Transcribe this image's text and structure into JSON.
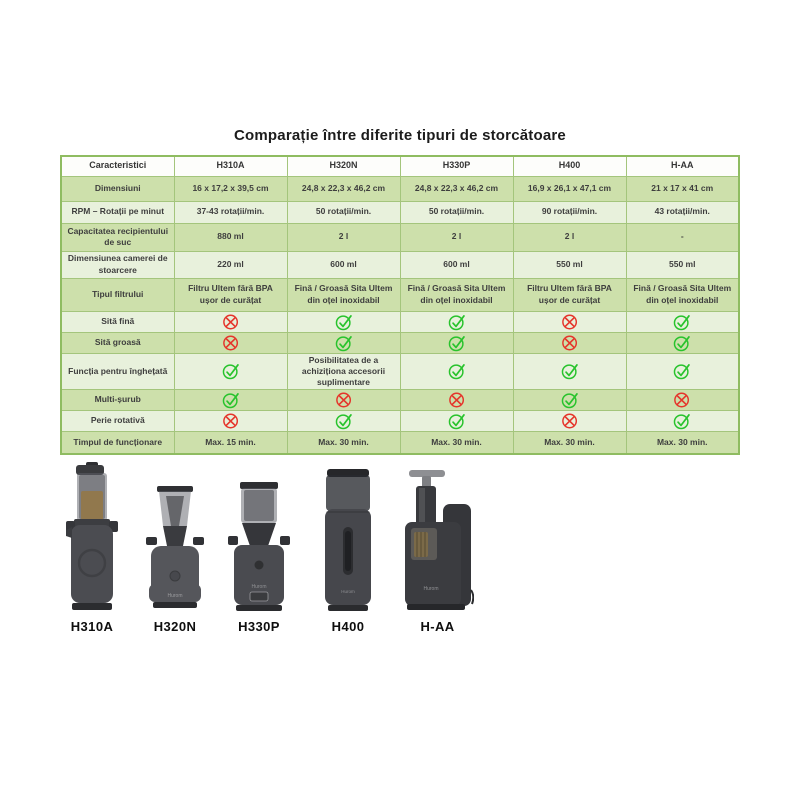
{
  "title": "Comparație între diferite tipuri de storcătoare",
  "table": {
    "header": [
      "Caracteristici",
      "H310A",
      "H320N",
      "H330P",
      "H400",
      "H-AA"
    ],
    "rows": [
      {
        "label": "Dimensiuni",
        "cells": [
          "16 x 17,2 x 39,5 cm",
          "24,8 x 22,3 x 46,2 cm",
          "24,8 x 22,3 x 46,2 cm",
          "16,9 x 26,1 x 47,1 cm",
          "21 x 17 x 41 cm"
        ]
      },
      {
        "label": "RPM – Rotații pe minut",
        "cells": [
          "37-43 rotații/min.",
          "50 rotații/min.",
          "50 rotații/min.",
          "90 rotații/min.",
          "43 rotații/min."
        ]
      },
      {
        "label": "Capacitatea recipientului de suc",
        "cells": [
          "880 ml",
          "2 l",
          "2 l",
          "2 l",
          "-"
        ]
      },
      {
        "label": "Dimensiunea camerei de stoarcere",
        "cells": [
          "220 ml",
          "600 ml",
          "600 ml",
          "550 ml",
          "550 ml"
        ]
      },
      {
        "label": "Tipul filtrului",
        "cells": [
          "Filtru Ultem fără BPA ușor de curățat",
          "Fină / Groasă Sita Ultem din oțel inoxidabil",
          "Fină / Groasă Sita Ultem din oțel inoxidabil",
          "Filtru Ultem fără BPA ușor de curățat",
          "Fină / Groasă Sita Ultem din oțel inoxidabil"
        ]
      },
      {
        "label": "Sită fină",
        "cells": [
          "no",
          "yes",
          "yes",
          "no",
          "yes"
        ]
      },
      {
        "label": "Sită groasă",
        "cells": [
          "no",
          "yes",
          "yes",
          "no",
          "yes"
        ]
      },
      {
        "label": "Funcția pentru înghețată",
        "cells": [
          "yes",
          "Posibilitatea de a achiziționa accesorii suplimentare",
          "yes",
          "yes",
          "yes"
        ]
      },
      {
        "label": "Multi-șurub",
        "cells": [
          "yes",
          "no",
          "no",
          "yes",
          "no"
        ]
      },
      {
        "label": "Perie rotativă",
        "cells": [
          "no",
          "yes",
          "yes",
          "no",
          "yes"
        ]
      },
      {
        "label": "Timpul de funcționare",
        "cells": [
          "Max. 15 min.",
          "Max. 30 min.",
          "Max. 30 min.",
          "Max. 30 min.",
          "Max. 30 min."
        ]
      }
    ]
  },
  "products": [
    {
      "name": "H310A"
    },
    {
      "name": "H320N",
      "brand": "Hurom"
    },
    {
      "name": "H330P",
      "brand": "Hurom"
    },
    {
      "name": "H400",
      "brand": "Hurom"
    },
    {
      "name": "H-AA",
      "brand": "Hurom"
    }
  ],
  "colors": {
    "check_green": "#28c32c",
    "cross_red": "#e5352b",
    "row_medium_green": "#cde0ab",
    "row_light_green": "#e8f1dc",
    "border_green": "#a4c57c"
  }
}
